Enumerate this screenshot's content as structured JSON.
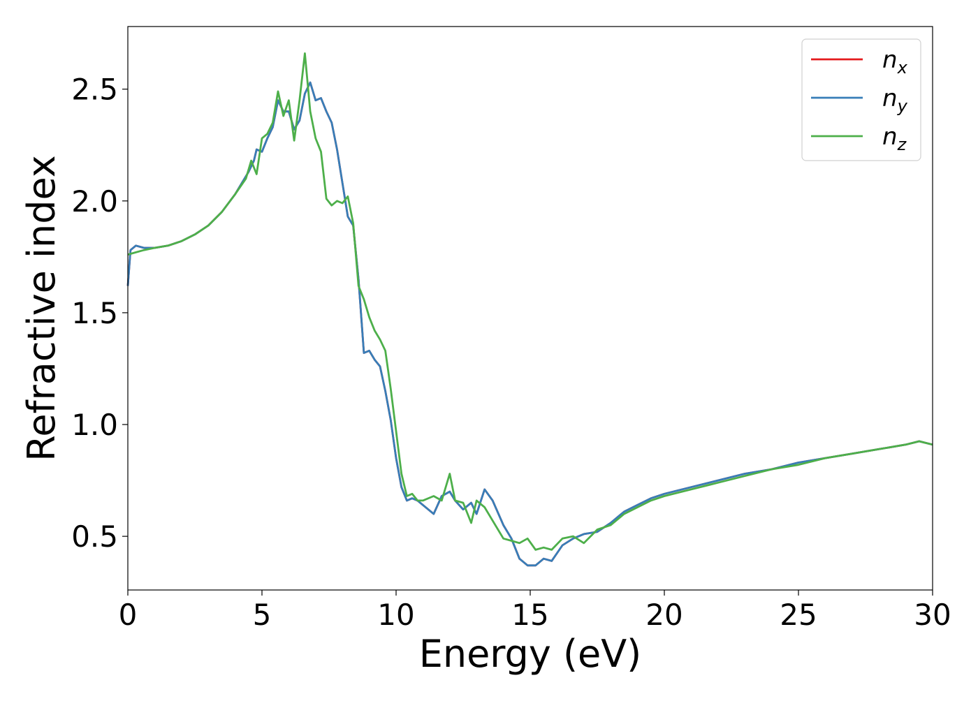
{
  "chart_data": {
    "type": "line",
    "xlabel": "Energy (eV)",
    "ylabel": "Refractive index",
    "xlim": [
      0,
      30
    ],
    "ylim": [
      0.26,
      2.78
    ],
    "xticks": [
      0,
      5,
      10,
      15,
      20,
      25,
      30
    ],
    "xtick_labels": [
      "0",
      "5",
      "10",
      "15",
      "20",
      "25",
      "30"
    ],
    "yticks": [
      0.5,
      1.0,
      1.5,
      2.0,
      2.5
    ],
    "ytick_labels": [
      "0.5",
      "1.0",
      "1.5",
      "2.0",
      "2.5"
    ],
    "grid": false,
    "legend_position": "top-right",
    "series": [
      {
        "name": "n",
        "subscript": "x",
        "color": "#e41a1c",
        "x": [
          0,
          0.1,
          0.3,
          0.6,
          1,
          1.5,
          2,
          2.5,
          3,
          3.5,
          4,
          4.5,
          4.7,
          4.8,
          5.0,
          5.2,
          5.4,
          5.6,
          5.8,
          6.0,
          6.2,
          6.4,
          6.6,
          6.8,
          7.0,
          7.2,
          7.4,
          7.6,
          7.8,
          8.0,
          8.2,
          8.4,
          8.6,
          8.8,
          9.0,
          9.2,
          9.4,
          9.6,
          9.8,
          10.0,
          10.2,
          10.4,
          10.6,
          10.8,
          11.0,
          11.4,
          11.7,
          12.0,
          12.2,
          12.5,
          12.8,
          13.0,
          13.3,
          13.6,
          14.0,
          14.3,
          14.6,
          14.9,
          15.2,
          15.5,
          15.8,
          16.2,
          16.6,
          17.0,
          17.5,
          18.0,
          18.5,
          19.0,
          19.5,
          20.0,
          21,
          22,
          23,
          24,
          25,
          26,
          27,
          28,
          29,
          29.5,
          30
        ],
        "values": [
          1.62,
          1.78,
          1.8,
          1.79,
          1.79,
          1.8,
          1.82,
          1.85,
          1.89,
          1.95,
          2.03,
          2.13,
          2.18,
          2.23,
          2.22,
          2.28,
          2.33,
          2.45,
          2.4,
          2.4,
          2.32,
          2.36,
          2.48,
          2.53,
          2.45,
          2.46,
          2.4,
          2.35,
          2.23,
          2.08,
          1.93,
          1.89,
          1.65,
          1.32,
          1.33,
          1.29,
          1.26,
          1.15,
          1.02,
          0.85,
          0.72,
          0.66,
          0.67,
          0.66,
          0.64,
          0.6,
          0.68,
          0.7,
          0.66,
          0.62,
          0.65,
          0.6,
          0.71,
          0.66,
          0.55,
          0.49,
          0.4,
          0.37,
          0.37,
          0.4,
          0.39,
          0.46,
          0.49,
          0.51,
          0.52,
          0.56,
          0.61,
          0.64,
          0.67,
          0.69,
          0.72,
          0.75,
          0.78,
          0.8,
          0.83,
          0.85,
          0.87,
          0.89,
          0.91,
          0.925,
          0.91
        ]
      },
      {
        "name": "n",
        "subscript": "y",
        "color": "#377eb8",
        "x": [
          0,
          0.1,
          0.3,
          0.6,
          1,
          1.5,
          2,
          2.5,
          3,
          3.5,
          4,
          4.5,
          4.7,
          4.8,
          5.0,
          5.2,
          5.4,
          5.6,
          5.8,
          6.0,
          6.2,
          6.4,
          6.6,
          6.8,
          7.0,
          7.2,
          7.4,
          7.6,
          7.8,
          8.0,
          8.2,
          8.4,
          8.6,
          8.8,
          9.0,
          9.2,
          9.4,
          9.6,
          9.8,
          10.0,
          10.2,
          10.4,
          10.6,
          10.8,
          11.0,
          11.4,
          11.7,
          12.0,
          12.2,
          12.5,
          12.8,
          13.0,
          13.3,
          13.6,
          14.0,
          14.3,
          14.6,
          14.9,
          15.2,
          15.5,
          15.8,
          16.2,
          16.6,
          17.0,
          17.5,
          18.0,
          18.5,
          19.0,
          19.5,
          20.0,
          21,
          22,
          23,
          24,
          25,
          26,
          27,
          28,
          29,
          29.5,
          30
        ],
        "values": [
          1.62,
          1.78,
          1.8,
          1.79,
          1.79,
          1.8,
          1.82,
          1.85,
          1.89,
          1.95,
          2.03,
          2.13,
          2.18,
          2.23,
          2.22,
          2.28,
          2.33,
          2.45,
          2.4,
          2.4,
          2.32,
          2.36,
          2.48,
          2.53,
          2.45,
          2.46,
          2.4,
          2.35,
          2.23,
          2.08,
          1.93,
          1.89,
          1.65,
          1.32,
          1.33,
          1.29,
          1.26,
          1.15,
          1.02,
          0.85,
          0.72,
          0.66,
          0.67,
          0.66,
          0.64,
          0.6,
          0.68,
          0.7,
          0.66,
          0.62,
          0.65,
          0.6,
          0.71,
          0.66,
          0.55,
          0.49,
          0.4,
          0.37,
          0.37,
          0.4,
          0.39,
          0.46,
          0.49,
          0.51,
          0.52,
          0.56,
          0.61,
          0.64,
          0.67,
          0.69,
          0.72,
          0.75,
          0.78,
          0.8,
          0.83,
          0.85,
          0.87,
          0.89,
          0.91,
          0.925,
          0.91
        ]
      },
      {
        "name": "n",
        "subscript": "z",
        "color": "#4daf4a",
        "x": [
          0,
          0.3,
          0.6,
          1,
          1.5,
          2,
          2.5,
          3,
          3.5,
          4,
          4.4,
          4.6,
          4.8,
          5.0,
          5.2,
          5.4,
          5.6,
          5.8,
          6.0,
          6.2,
          6.4,
          6.6,
          6.8,
          7.0,
          7.2,
          7.4,
          7.6,
          7.8,
          8.0,
          8.2,
          8.4,
          8.6,
          8.8,
          9.0,
          9.2,
          9.4,
          9.6,
          9.8,
          10.0,
          10.2,
          10.4,
          10.6,
          10.8,
          11.0,
          11.4,
          11.7,
          12.0,
          12.2,
          12.5,
          12.8,
          13.0,
          13.3,
          13.6,
          14.0,
          14.3,
          14.6,
          14.9,
          15.2,
          15.5,
          15.8,
          16.2,
          16.6,
          17.0,
          17.5,
          18.0,
          18.5,
          19.0,
          19.5,
          20.0,
          21,
          22,
          23,
          24,
          25,
          26,
          27,
          28,
          29,
          29.5,
          30
        ],
        "values": [
          1.76,
          1.77,
          1.78,
          1.79,
          1.8,
          1.82,
          1.85,
          1.89,
          1.95,
          2.03,
          2.1,
          2.18,
          2.12,
          2.28,
          2.3,
          2.35,
          2.49,
          2.38,
          2.45,
          2.27,
          2.45,
          2.66,
          2.4,
          2.28,
          2.22,
          2.01,
          1.98,
          2.0,
          1.99,
          2.02,
          1.9,
          1.62,
          1.56,
          1.48,
          1.42,
          1.38,
          1.33,
          1.16,
          0.97,
          0.78,
          0.68,
          0.69,
          0.66,
          0.66,
          0.68,
          0.66,
          0.78,
          0.66,
          0.65,
          0.56,
          0.66,
          0.63,
          0.57,
          0.49,
          0.48,
          0.47,
          0.49,
          0.44,
          0.45,
          0.44,
          0.49,
          0.5,
          0.47,
          0.53,
          0.55,
          0.6,
          0.63,
          0.66,
          0.68,
          0.71,
          0.74,
          0.77,
          0.8,
          0.82,
          0.85,
          0.87,
          0.89,
          0.91,
          0.925,
          0.91
        ]
      }
    ]
  }
}
